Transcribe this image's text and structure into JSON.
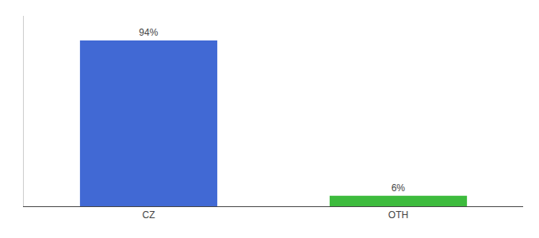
{
  "chart_data": {
    "type": "bar",
    "categories": [
      "CZ",
      "OTH"
    ],
    "values": [
      94,
      6
    ],
    "value_labels": [
      "94%",
      "6%"
    ],
    "data_labels": true,
    "colors": [
      "#4169d4",
      "#3dbb3d"
    ],
    "ylim": [
      0,
      108
    ],
    "grid": false,
    "tick_labels": "x"
  }
}
